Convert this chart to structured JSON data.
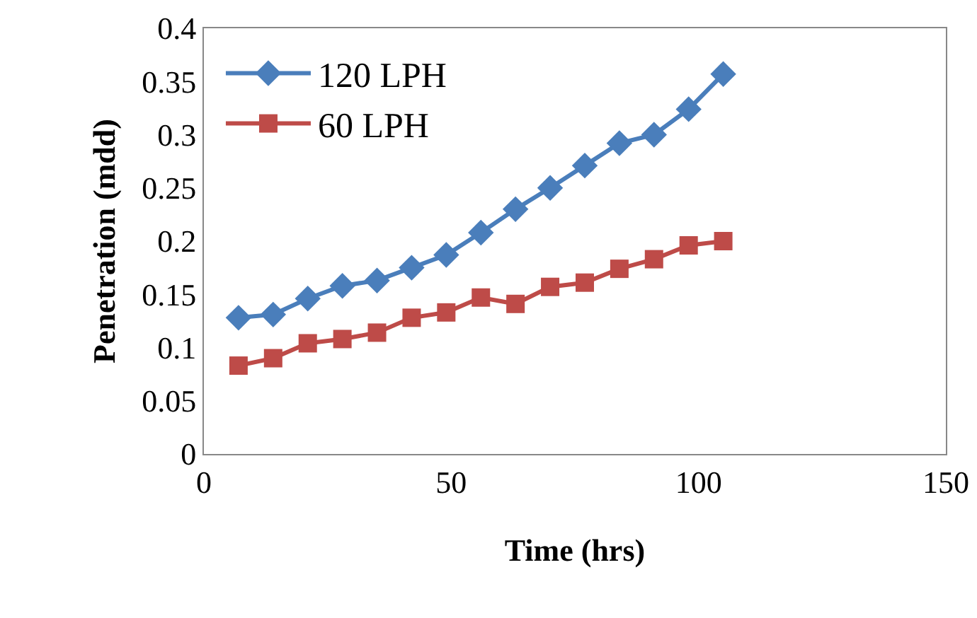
{
  "chart_data": {
    "type": "line",
    "xlabel": "Time (hrs)",
    "ylabel": "Penetration (mdd)",
    "x": [
      7,
      14,
      21,
      28,
      35,
      42,
      49,
      56,
      63,
      70,
      77,
      84,
      91,
      98,
      105
    ],
    "series": [
      {
        "name": "120 LPH",
        "color": "#4a7ebb",
        "marker": "diamond",
        "values": [
          0.128,
          0.131,
          0.146,
          0.158,
          0.163,
          0.175,
          0.187,
          0.208,
          0.23,
          0.25,
          0.271,
          0.292,
          0.3,
          0.324,
          0.357
        ]
      },
      {
        "name": "60 LPH",
        "color": "#be4b48",
        "marker": "square",
        "values": [
          0.083,
          0.09,
          0.104,
          0.108,
          0.114,
          0.128,
          0.133,
          0.147,
          0.141,
          0.157,
          0.161,
          0.174,
          0.183,
          0.196,
          0.2
        ]
      }
    ],
    "xlim": [
      0,
      150
    ],
    "xticks": [
      0,
      50,
      100,
      150
    ],
    "ylim": [
      0,
      0.4
    ],
    "yticks": [
      0,
      0.05,
      0.1,
      0.15,
      0.2,
      0.25,
      0.3,
      0.35,
      0.4
    ],
    "grid": false,
    "legend": "top left"
  }
}
